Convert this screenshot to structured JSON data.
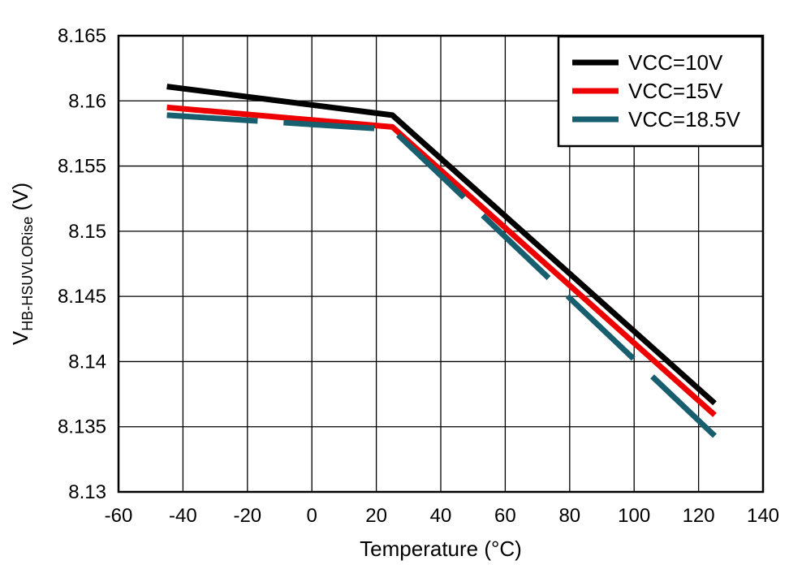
{
  "chart_data": {
    "type": "line",
    "title": "",
    "xlabel": "Temperature (°C)",
    "ylabel": {
      "main": "V",
      "subscript": "HB-HSUVLORise",
      "unit": " (V)"
    },
    "xlim": [
      -60,
      140
    ],
    "ylim": [
      8.13,
      8.165
    ],
    "xticks": [
      -60,
      -40,
      -20,
      0,
      20,
      40,
      60,
      80,
      100,
      120,
      140
    ],
    "xtick_labels": [
      "-60",
      "-40",
      "-20",
      "0",
      "20",
      "40",
      "60",
      "80",
      "100",
      "120",
      "140"
    ],
    "yticks": [
      8.13,
      8.135,
      8.14,
      8.145,
      8.15,
      8.155,
      8.16,
      8.165
    ],
    "ytick_labels": [
      "8.13",
      "8.135",
      "8.14",
      "8.145",
      "8.15",
      "8.155",
      "8.16",
      "8.165"
    ],
    "grid": true,
    "legend_position": "top-right",
    "series": [
      {
        "name": "VCC=10V",
        "color": "#000000",
        "dashed": false,
        "x": [
          -45,
          25,
          125
        ],
        "y": [
          8.1611,
          8.1589,
          8.1368
        ]
      },
      {
        "name": "VCC=15V",
        "color": "#ee0000",
        "dashed": false,
        "x": [
          -45,
          25,
          125
        ],
        "y": [
          8.1595,
          8.158,
          8.1359
        ]
      },
      {
        "name": "VCC=18.5V",
        "color": "#175e6e",
        "dashed": true,
        "x": [
          -45,
          25,
          125
        ],
        "y": [
          8.1589,
          8.1578,
          8.1343
        ]
      }
    ]
  }
}
